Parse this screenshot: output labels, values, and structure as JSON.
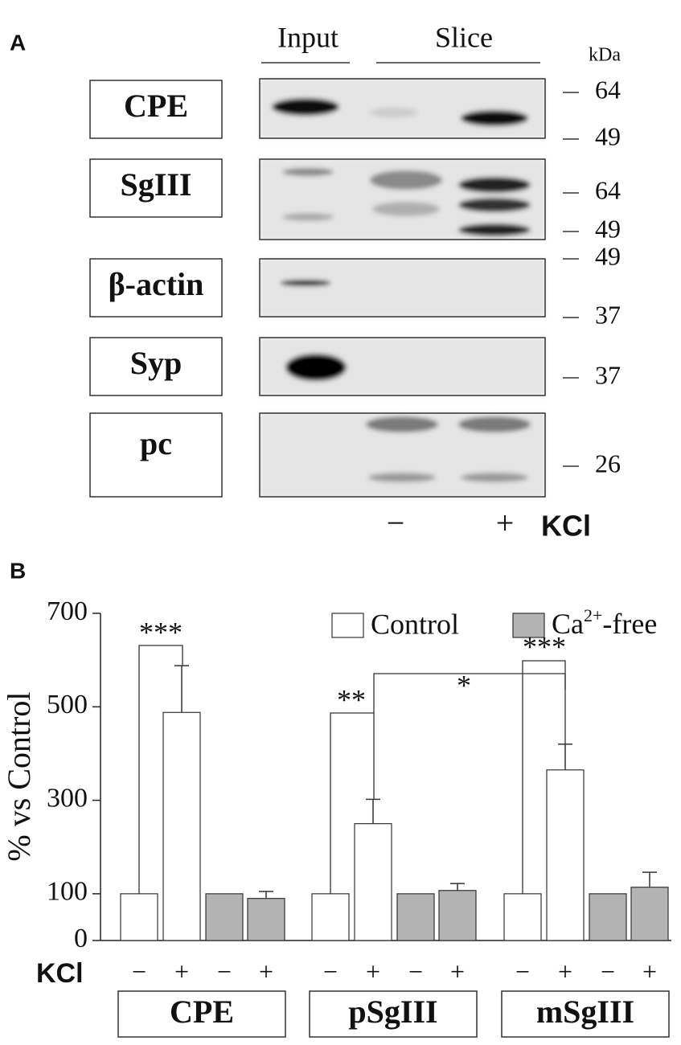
{
  "panel_a": {
    "label": "A",
    "input": "Input",
    "slice": "Slice",
    "unit": "kDa",
    "rows": [
      {
        "label": "CPE",
        "markers": [
          64,
          49
        ]
      },
      {
        "label": "SgIII",
        "markers": [
          64,
          49
        ]
      },
      {
        "label": "β-actin",
        "markers": [
          49,
          37
        ]
      },
      {
        "label": "Syp",
        "markers": [
          37
        ]
      },
      {
        "label": "pc",
        "markers": [
          26
        ]
      }
    ],
    "kcl_minus": "−",
    "kcl_plus": "+",
    "kcl": "KCl"
  },
  "chart_data": {
    "type": "bar",
    "panel_label": "B",
    "ylabel": "% vs Control",
    "categories": [
      "CPE",
      "pSgIII",
      "mSgIII"
    ],
    "kcl_label": "KCl",
    "kcl_levels": [
      "−",
      "+"
    ],
    "series": [
      {
        "name": "Control",
        "color": "#ffffff",
        "values": [
          [
            100,
            488
          ],
          [
            100,
            250
          ],
          [
            100,
            365
          ]
        ],
        "errors": [
          [
            null,
            100
          ],
          [
            null,
            52
          ],
          [
            null,
            55
          ]
        ]
      },
      {
        "name": "Ca2+-free",
        "color": "#b3b3b3",
        "values": [
          [
            100,
            90
          ],
          [
            100,
            107
          ],
          [
            100,
            114
          ]
        ],
        "errors": [
          [
            null,
            15
          ],
          [
            null,
            15
          ],
          [
            null,
            32
          ]
        ]
      }
    ],
    "ylim": [
      0,
      700
    ],
    "yticks": [
      0,
      100,
      300,
      500,
      700
    ],
    "annotations": [
      {
        "text": "***"
      },
      {
        "text": "**"
      },
      {
        "text": "***"
      },
      {
        "text": "*"
      }
    ]
  }
}
